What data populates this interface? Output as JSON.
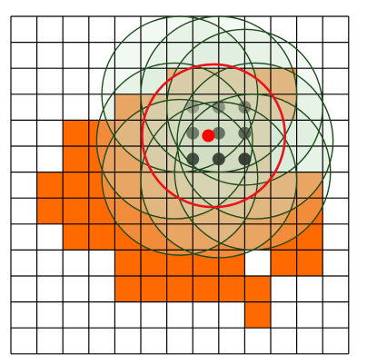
{
  "grid": {
    "rows": 13,
    "cols": 13
  },
  "colors": {
    "background": "#ffffff",
    "grid_line": "#000000",
    "filled_cell": "#ff6a00",
    "circle_stroke": "#1e4a1e",
    "circle_fill": "#cfe6cf",
    "highlight_circle": "#e8141a",
    "center_point": "#ff0000",
    "sample_point": "#2f3a2f"
  },
  "filled_cells": [
    [
      2,
      6
    ],
    [
      2,
      7
    ],
    [
      2,
      8
    ],
    [
      2,
      9
    ],
    [
      2,
      10
    ],
    [
      3,
      4
    ],
    [
      3,
      5
    ],
    [
      3,
      6
    ],
    [
      3,
      7
    ],
    [
      3,
      8
    ],
    [
      3,
      9
    ],
    [
      3,
      10
    ],
    [
      4,
      2
    ],
    [
      4,
      3
    ],
    [
      4,
      4
    ],
    [
      4,
      5
    ],
    [
      4,
      6
    ],
    [
      4,
      7
    ],
    [
      4,
      8
    ],
    [
      4,
      9
    ],
    [
      5,
      2
    ],
    [
      5,
      3
    ],
    [
      5,
      4
    ],
    [
      5,
      5
    ],
    [
      5,
      6
    ],
    [
      5,
      7
    ],
    [
      5,
      8
    ],
    [
      5,
      9
    ],
    [
      6,
      1
    ],
    [
      6,
      2
    ],
    [
      6,
      3
    ],
    [
      6,
      4
    ],
    [
      6,
      5
    ],
    [
      6,
      6
    ],
    [
      6,
      7
    ],
    [
      6,
      8
    ],
    [
      6,
      9
    ],
    [
      6,
      10
    ],
    [
      6,
      11
    ],
    [
      7,
      1
    ],
    [
      7,
      2
    ],
    [
      7,
      3
    ],
    [
      7,
      4
    ],
    [
      7,
      5
    ],
    [
      7,
      6
    ],
    [
      7,
      7
    ],
    [
      7,
      8
    ],
    [
      7,
      9
    ],
    [
      7,
      10
    ],
    [
      7,
      11
    ],
    [
      8,
      2
    ],
    [
      8,
      3
    ],
    [
      8,
      4
    ],
    [
      8,
      5
    ],
    [
      8,
      6
    ],
    [
      8,
      7
    ],
    [
      8,
      8
    ],
    [
      8,
      9
    ],
    [
      8,
      10
    ],
    [
      8,
      11
    ],
    [
      9,
      4
    ],
    [
      9,
      5
    ],
    [
      9,
      6
    ],
    [
      9,
      7
    ],
    [
      9,
      8
    ],
    [
      9,
      10
    ],
    [
      9,
      11
    ],
    [
      10,
      4
    ],
    [
      10,
      5
    ],
    [
      10,
      6
    ],
    [
      10,
      7
    ],
    [
      10,
      8
    ],
    [
      10,
      9
    ],
    [
      11,
      9
    ]
  ],
  "neighbor_circles": [
    {
      "cx": 6.5,
      "cy": 3.0,
      "r": 3.0
    },
    {
      "cx": 8.0,
      "cy": 3.0,
      "r": 3.0
    },
    {
      "cx": 9.0,
      "cy": 3.5,
      "r": 3.0
    },
    {
      "cx": 6.3,
      "cy": 4.8,
      "r": 3.0
    },
    {
      "cx": 9.4,
      "cy": 4.8,
      "r": 3.0
    },
    {
      "cx": 6.5,
      "cy": 6.2,
      "r": 3.0
    },
    {
      "cx": 8.0,
      "cy": 6.3,
      "r": 3.0
    },
    {
      "cx": 9.3,
      "cy": 6.0,
      "r": 3.0
    },
    {
      "cx": 7.8,
      "cy": 4.6,
      "r": 2.75
    }
  ],
  "highlight_circle": {
    "cx": 7.8,
    "cy": 4.6,
    "r": 2.75
  },
  "sample_points": [
    {
      "col": 7,
      "row": 3.5,
      "shade": 0.35
    },
    {
      "col": 8,
      "row": 3.5,
      "shade": 0.45
    },
    {
      "col": 9,
      "row": 3.5,
      "shade": 0.5
    },
    {
      "col": 7,
      "row": 4.5,
      "shade": 0.6
    },
    {
      "col": 8,
      "row": 4.5,
      "shade": 0.65
    },
    {
      "col": 9,
      "row": 4.5,
      "shade": 0.7
    },
    {
      "col": 7,
      "row": 5.5,
      "shade": 0.85
    },
    {
      "col": 8,
      "row": 5.5,
      "shade": 0.9
    },
    {
      "col": 9,
      "row": 5.5,
      "shade": 0.95
    }
  ],
  "center_point": {
    "col": 7.6,
    "row": 4.6
  }
}
